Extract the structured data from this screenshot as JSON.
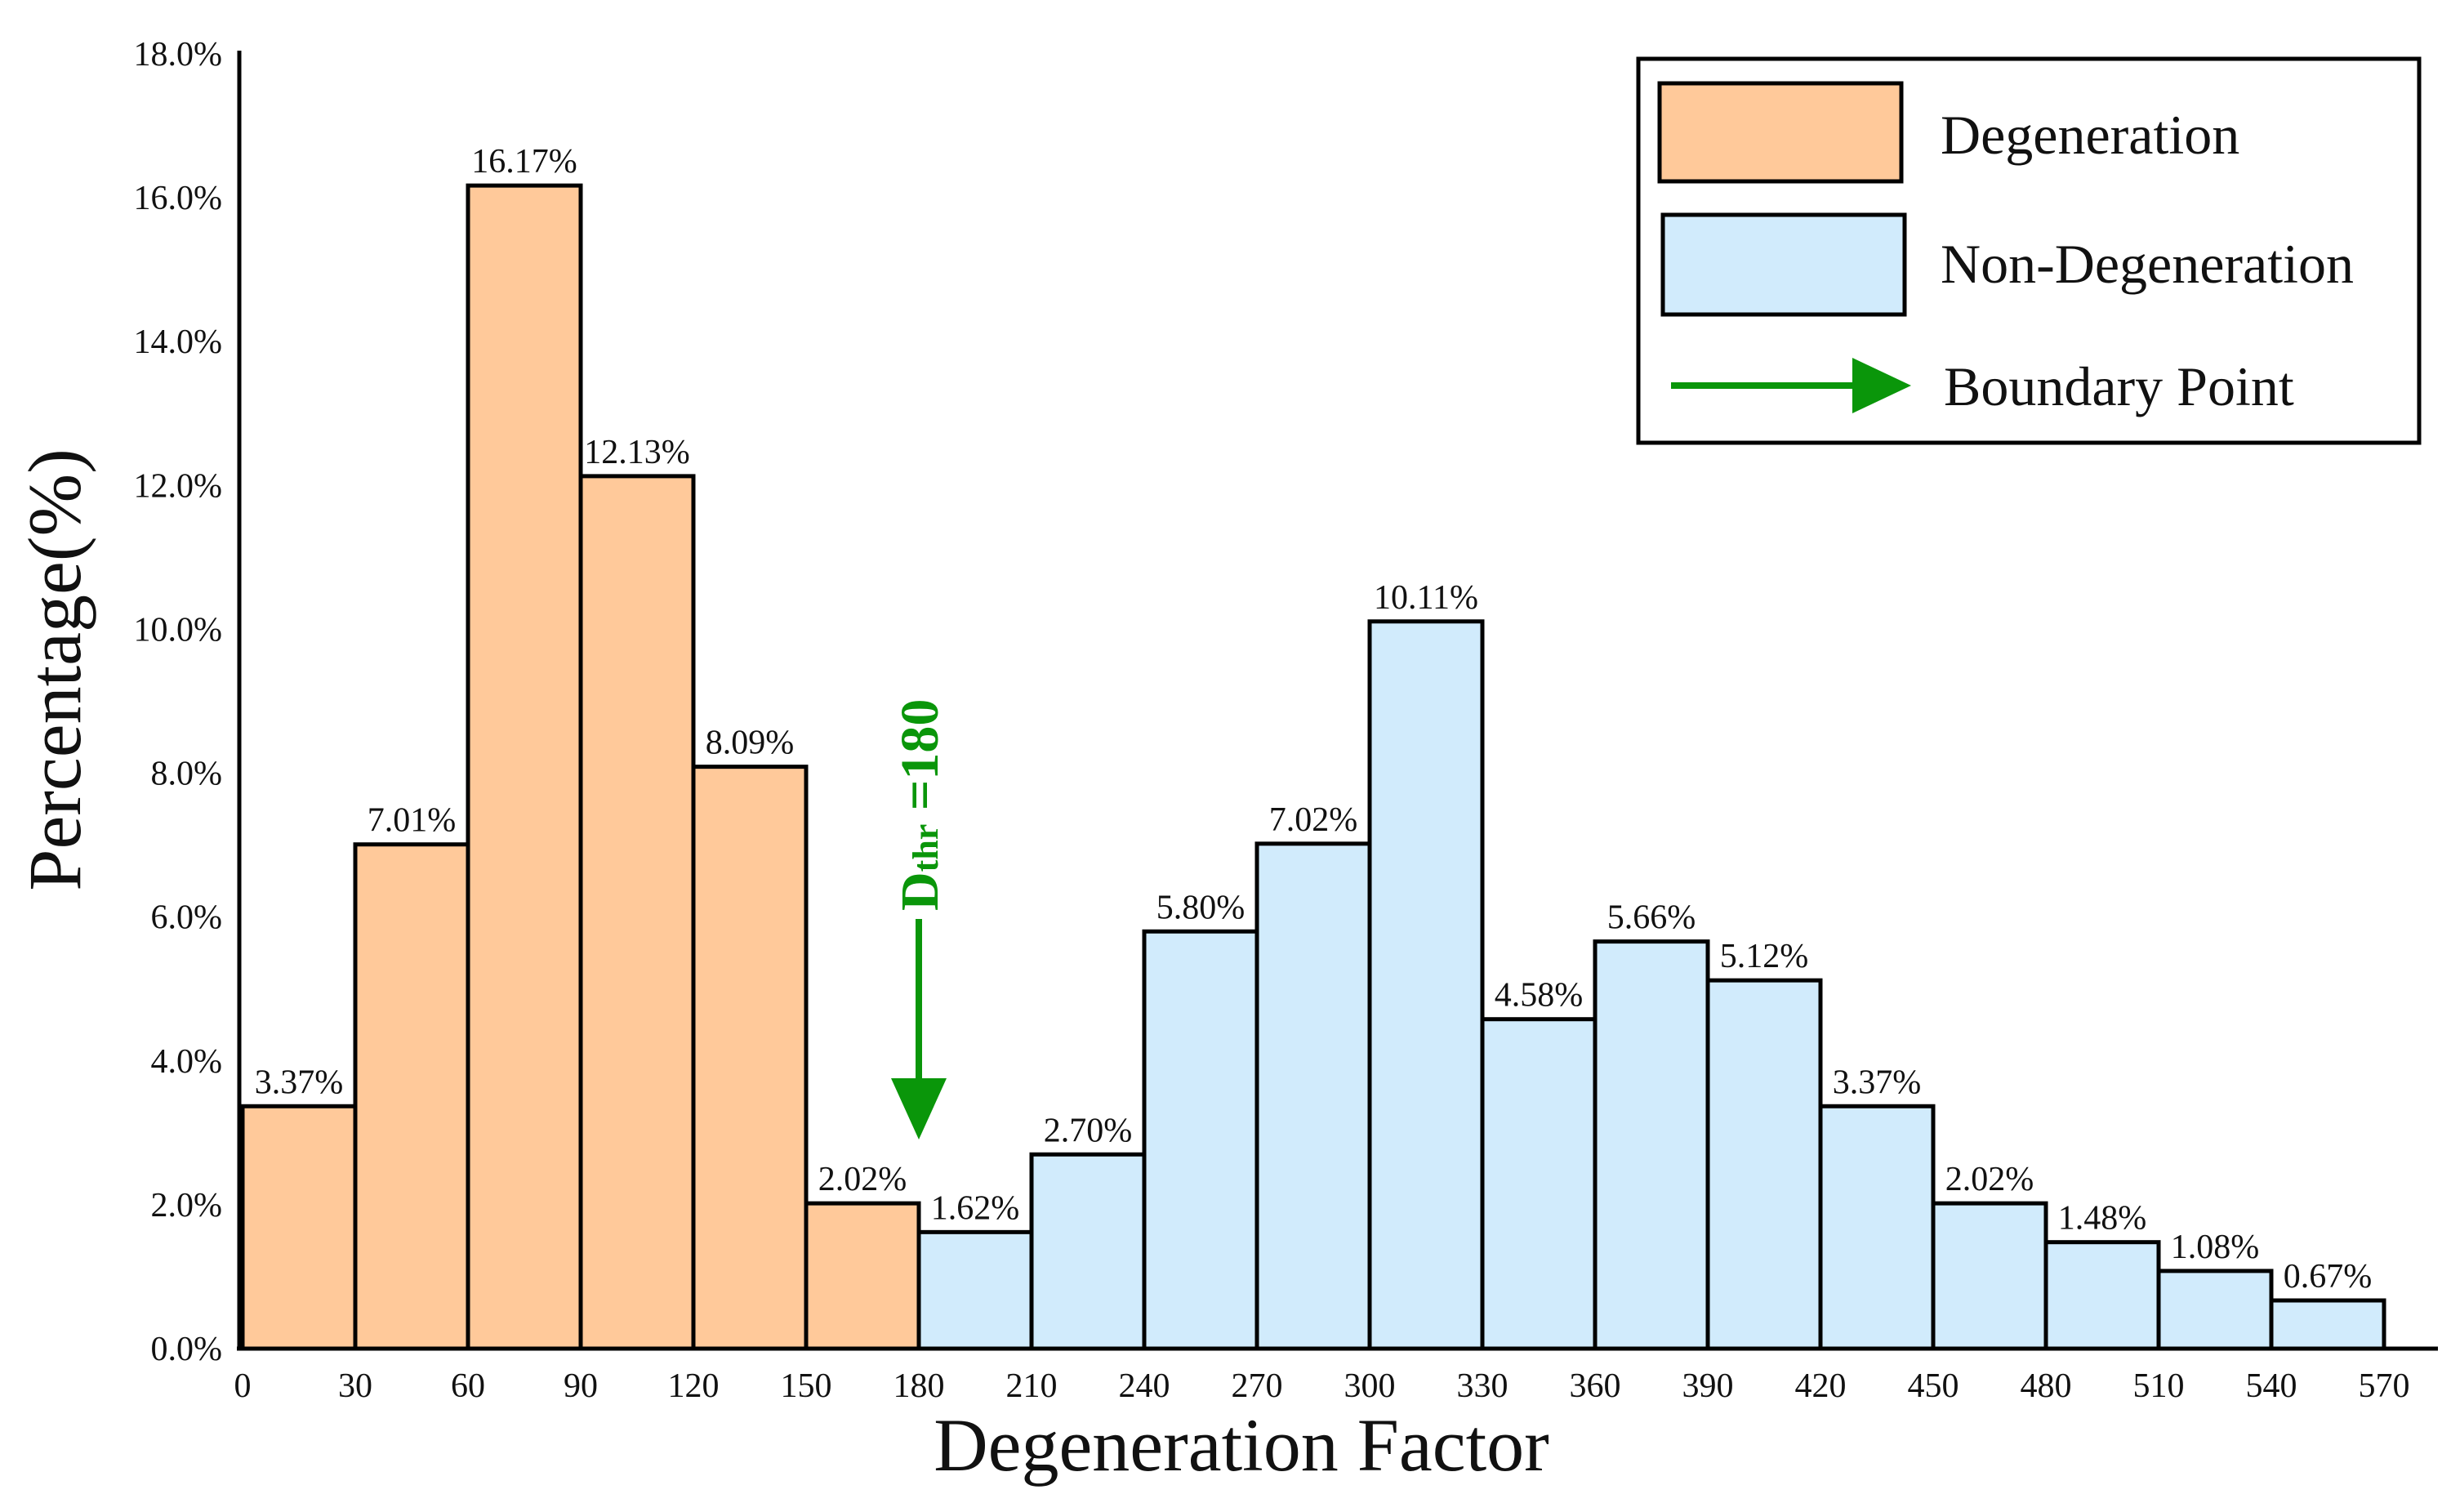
{
  "chart_data": {
    "type": "bar",
    "title": "",
    "xlabel": "Degeneration Factor",
    "ylabel": "Percentage(%)",
    "ylim": [
      0,
      18
    ],
    "yticks": [
      "0.0%",
      "2.0%",
      "4.0%",
      "6.0%",
      "8.0%",
      "10.0%",
      "12.0%",
      "14.0%",
      "16.0%",
      "18.0%"
    ],
    "xticks": [
      "0",
      "30",
      "60",
      "90",
      "120",
      "150",
      "180",
      "210",
      "240",
      "270",
      "300",
      "330",
      "360",
      "390",
      "420",
      "450",
      "480",
      "510",
      "540",
      "570"
    ],
    "bin_edges": [
      0,
      30,
      60,
      90,
      120,
      150,
      180,
      210,
      240,
      270,
      300,
      330,
      360,
      390,
      420,
      450,
      480,
      510,
      540,
      570
    ],
    "series": [
      {
        "name": "Degeneration",
        "color": "#ffc99a",
        "bins": [
          [
            0,
            30
          ],
          [
            30,
            60
          ],
          [
            60,
            90
          ],
          [
            90,
            120
          ],
          [
            120,
            150
          ],
          [
            150,
            180
          ]
        ],
        "values": [
          3.37,
          7.01,
          16.17,
          12.13,
          8.09,
          2.02
        ],
        "labels": [
          "3.37%",
          "7.01%",
          "16.17%",
          "12.13%",
          "8.09%",
          "2.02%"
        ]
      },
      {
        "name": "Non-Degeneration",
        "color": "#d1ebfc",
        "bins": [
          [
            180,
            210
          ],
          [
            210,
            240
          ],
          [
            240,
            270
          ],
          [
            270,
            300
          ],
          [
            300,
            330
          ],
          [
            330,
            360
          ],
          [
            360,
            390
          ],
          [
            390,
            420
          ],
          [
            420,
            450
          ],
          [
            450,
            480
          ],
          [
            480,
            510
          ],
          [
            510,
            540
          ],
          [
            540,
            570
          ]
        ],
        "values": [
          1.62,
          2.7,
          5.8,
          7.02,
          10.11,
          4.58,
          5.66,
          5.12,
          3.37,
          2.02,
          1.48,
          1.08,
          0.67
        ],
        "labels": [
          "1.62%",
          "2.70%",
          "5.80%",
          "7.02%",
          "10.11%",
          "4.58%",
          "5.66%",
          "5.12%",
          "3.37%",
          "2.02%",
          "1.48%",
          "1.08%",
          "0.67%"
        ]
      }
    ],
    "annotation": {
      "label_main": "D",
      "label_sub": "thr",
      "label_rest": " =180",
      "x_value": 180,
      "color": "#0a960a"
    },
    "legend": {
      "placement": "top-right",
      "items": [
        {
          "label": "Degeneration",
          "kind": "box",
          "color": "#ffc99a"
        },
        {
          "label": "Non-Degeneration",
          "kind": "box",
          "color": "#d1ebfc"
        },
        {
          "label": "Boundary Point",
          "kind": "arrow",
          "color": "#0a960a"
        }
      ]
    }
  }
}
